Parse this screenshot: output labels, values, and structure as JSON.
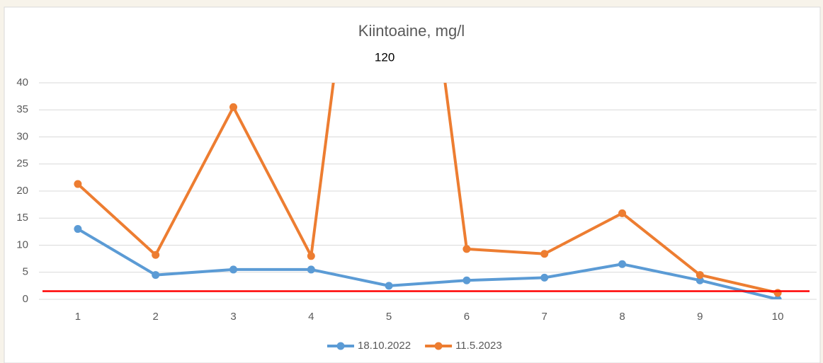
{
  "chart_data": {
    "type": "line",
    "title": "Kiintoaine, mg/l",
    "categories": [
      "1",
      "2",
      "3",
      "4",
      "5",
      "6",
      "7",
      "8",
      "9",
      "10"
    ],
    "series": [
      {
        "name": "18.10.2022",
        "color": "#5b9bd5",
        "values": [
          13,
          4.5,
          5.5,
          5.5,
          2.5,
          3.5,
          4,
          6.5,
          3.5,
          0
        ]
      },
      {
        "name": "11.5.2023",
        "color": "#ed7d31",
        "values": [
          21.3,
          8.2,
          35.5,
          8,
          120,
          9.3,
          8.4,
          15.9,
          4.5,
          1.2
        ],
        "value_labels": [
          null,
          null,
          null,
          null,
          "120",
          null,
          null,
          null,
          null,
          null
        ]
      }
    ],
    "reference_line": {
      "value": 1.5,
      "color": "#ff0000"
    },
    "ylim": [
      0,
      40
    ],
    "yticks": [
      0,
      5,
      10,
      15,
      20,
      25,
      30,
      35,
      40
    ],
    "grid": true,
    "legend": "bottom"
  }
}
